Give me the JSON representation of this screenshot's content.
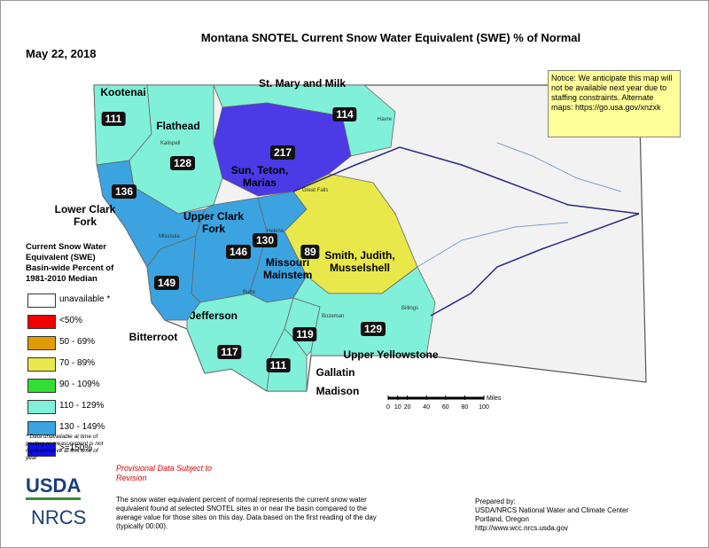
{
  "header": {
    "title": "Montana SNOTEL Current Snow Water Equivalent (SWE) % of Normal",
    "date": "May 22, 2018"
  },
  "notice": "Notice: We anticipate this map will not be available next year due to staffing constraints. Alternate maps: https://go.usa.gov/xnzxk",
  "basins": [
    {
      "name": "Kootenai",
      "value": 111,
      "color": "#80f0d8"
    },
    {
      "name": "Flathead",
      "value": 128,
      "color": "#80f0d8"
    },
    {
      "name": "St. Mary and Milk",
      "value": 114,
      "color": "#80f0d8"
    },
    {
      "name": "Sun, Teton, Marias",
      "value": 217,
      "color": "#4b3ae6"
    },
    {
      "name": "Lower Clark Fork",
      "value": 136,
      "color": "#3ba3e0"
    },
    {
      "name": "Upper Clark Fork",
      "value": 146,
      "color": "#3ba3e0"
    },
    {
      "name": "Bitterroot",
      "value": 149,
      "color": "#3ba3e0"
    },
    {
      "name": "Missouri Mainstem",
      "value": 130,
      "color": "#3ba3e0"
    },
    {
      "name": "Smith, Judith, Musselshell",
      "value": 89,
      "color": "#e8e84a"
    },
    {
      "name": "Jefferson",
      "value": 117,
      "color": "#80f0d8"
    },
    {
      "name": "Gallatin",
      "value": 119,
      "color": "#80f0d8"
    },
    {
      "name": "Madison",
      "value": 111,
      "color": "#80f0d8"
    },
    {
      "name": "Upper Yellowstone",
      "value": 129,
      "color": "#80f0d8"
    }
  ],
  "cities": [
    "Kalispell",
    "Missoula",
    "Great Falls",
    "Havre",
    "Helena",
    "Butte",
    "Bozeman",
    "Billings"
  ],
  "legend": {
    "title": "Current Snow Water Equivalent (SWE) Basin-wide Percent of 1981-2010 Median",
    "items": [
      {
        "label": "unavailable *",
        "color": "#ffffff"
      },
      {
        "label": "<50%",
        "color": "#ee0000"
      },
      {
        "label": "50 - 69%",
        "color": "#e09b00"
      },
      {
        "label": "70 - 89%",
        "color": "#e8e84a"
      },
      {
        "label": "90 - 109%",
        "color": "#33dd33"
      },
      {
        "label": "110 - 129%",
        "color": "#80f0d8"
      },
      {
        "label": "130 - 149%",
        "color": "#3ba3e0"
      },
      {
        "label": ">=150%",
        "color": "#1010ee"
      }
    ],
    "footnote": "* Data unavailable at time of posting or measurement is not representative at this time of year"
  },
  "scale": {
    "unit": "Miles",
    "ticks": [
      0,
      10,
      20,
      40,
      60,
      80,
      100
    ]
  },
  "provisional": "Provisional Data Subject to Revision",
  "description": "The snow water equivalent percent of normal represents the current snow water equivalent found at selected SNOTEL sites in or near the basin compared to the average value for those sites on this day. Data based on the first reading of the day (typically 00:00).",
  "prepared": [
    "Prepared by:",
    "USDA/NRCS National Water and Climate Center",
    "Portland, Oregon",
    "http://www.wcc.nrcs.usda.gov"
  ],
  "logos": [
    "USDA",
    "NRCS"
  ]
}
